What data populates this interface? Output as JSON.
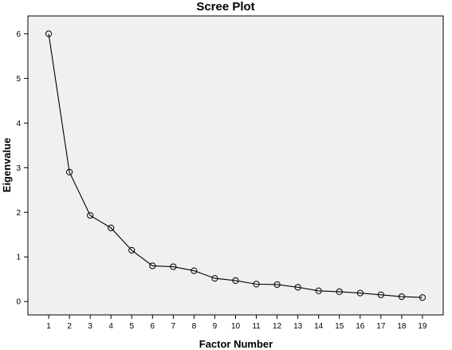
{
  "chart_data": {
    "type": "line",
    "title": "Scree Plot",
    "xlabel": "Factor Number",
    "ylabel": "Eigenvalue",
    "x": [
      1,
      2,
      3,
      4,
      5,
      6,
      7,
      8,
      9,
      10,
      11,
      12,
      13,
      14,
      15,
      16,
      17,
      18,
      19
    ],
    "x_tick_labels": [
      "1",
      "2",
      "3",
      "4",
      "5",
      "6",
      "7",
      "8",
      "9",
      "10",
      "11",
      "12",
      "13",
      "14",
      "15",
      "16",
      "17",
      "18",
      "19"
    ],
    "y_tick_labels": [
      "0",
      "1",
      "2",
      "3",
      "4",
      "5",
      "6"
    ],
    "y_ticks": [
      0,
      1,
      2,
      3,
      4,
      5,
      6
    ],
    "ylim": [
      -0.3,
      6.4
    ],
    "xlim": [
      0,
      20
    ],
    "series": [
      {
        "values": [
          6.0,
          2.9,
          1.93,
          1.65,
          1.15,
          0.8,
          0.78,
          0.69,
          0.52,
          0.47,
          0.39,
          0.38,
          0.32,
          0.24,
          0.22,
          0.19,
          0.15,
          0.11,
          0.09
        ]
      }
    ],
    "marker": "circle",
    "background": "#f0f0f0",
    "grid": false,
    "legend": "none"
  }
}
